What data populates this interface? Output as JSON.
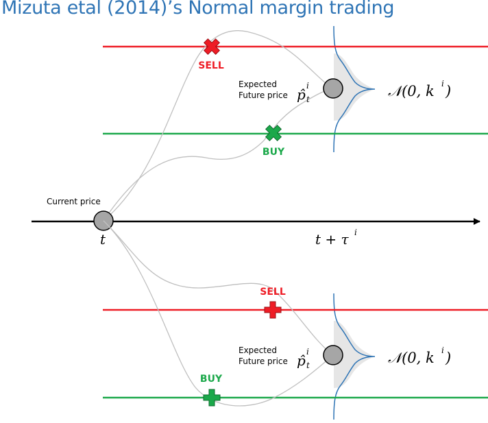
{
  "title": "Mizuta etal (2014)’s Normal margin trading",
  "labels": {
    "current_price": "Current price",
    "time_now": "t",
    "time_future_base": "t + τ",
    "time_future_sup": "i",
    "expected_line1": "Expected",
    "expected_line2": "Future price",
    "estimate_base": "p̂",
    "estimate_sub": "t",
    "estimate_sup": "i",
    "distribution_base": "𝒩(0, k",
    "distribution_sup": "i",
    "distribution_close": ")",
    "upper": {
      "sell": "SELL",
      "buy": "BUY"
    },
    "lower": {
      "sell": "SELL",
      "buy": "BUY"
    }
  },
  "colors": {
    "title": "#2e74b5",
    "sell": "#ee1c25",
    "buy": "#1ba84a",
    "distribution_stroke": "#2e74b5",
    "distribution_fill": "#e6e6e6",
    "node_fill": "#a6a6a6",
    "paths": "#bfbfbf",
    "axis": "#000000"
  },
  "markers": {
    "upper_sell": "cross-x",
    "upper_buy": "cross-x",
    "lower_sell": "plus",
    "lower_buy": "plus"
  }
}
